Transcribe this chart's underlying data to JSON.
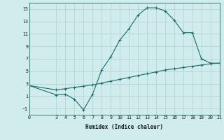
{
  "xlabel": "Humidex (Indice chaleur)",
  "background_color": "#d0ecec",
  "grid_color": "#b8d8d8",
  "line_color": "#1a6b6b",
  "line1_x": [
    0,
    3,
    4,
    5,
    6,
    7,
    8,
    9,
    10,
    11,
    12,
    13,
    14,
    15,
    16,
    17,
    18,
    19,
    20,
    21
  ],
  "line1_y": [
    2.7,
    1.2,
    1.3,
    0.5,
    -1.2,
    1.3,
    5.2,
    7.3,
    10.0,
    11.8,
    14.0,
    15.2,
    15.2,
    14.7,
    13.2,
    11.2,
    11.2,
    7.0,
    6.3,
    6.3
  ],
  "line2_x": [
    0,
    3,
    4,
    5,
    6,
    7,
    8,
    9,
    10,
    11,
    12,
    13,
    14,
    15,
    16,
    17,
    18,
    19,
    20,
    21
  ],
  "line2_y": [
    2.7,
    2.0,
    2.2,
    2.4,
    2.6,
    2.8,
    3.1,
    3.4,
    3.7,
    4.0,
    4.3,
    4.6,
    4.9,
    5.2,
    5.4,
    5.6,
    5.8,
    6.0,
    6.2,
    6.3
  ],
  "xlim": [
    0,
    21
  ],
  "ylim": [
    -2,
    16
  ],
  "yticks": [
    -1,
    1,
    3,
    5,
    7,
    9,
    11,
    13,
    15
  ],
  "xticks": [
    0,
    3,
    4,
    5,
    6,
    7,
    8,
    9,
    10,
    11,
    12,
    13,
    14,
    15,
    16,
    17,
    18,
    19,
    20,
    21
  ]
}
